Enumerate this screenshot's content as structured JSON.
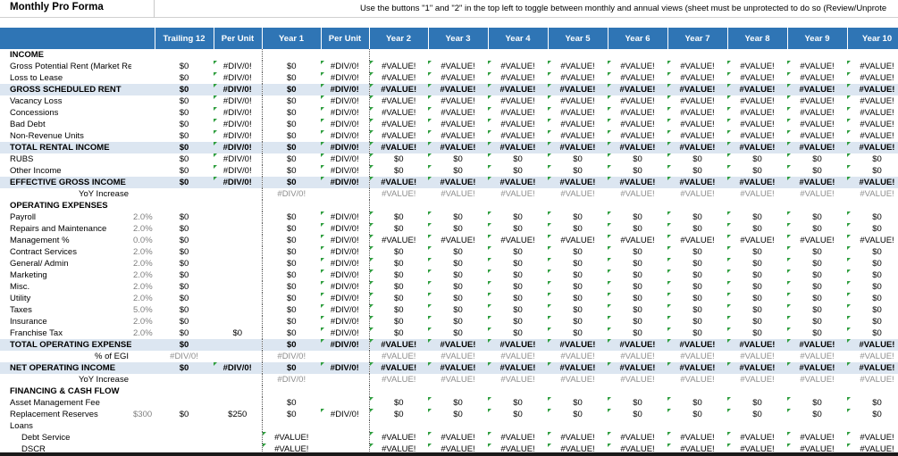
{
  "sheet": {
    "title": "Monthly Pro Forma",
    "note": "Use the buttons \"1\" and \"2\" in the top left to toggle between monthly and annual views (sheet must be unprotected to do so (Review/Unprote"
  },
  "columns": [
    "",
    "",
    "Trailing 12",
    "Per Unit",
    "Year 1",
    "Per Unit",
    "Year 2",
    "Year 3",
    "Year 4",
    "Year 5",
    "Year 6",
    "Year 7",
    "Year 8",
    "Year 9",
    "Year 10"
  ],
  "rows": [
    {
      "label": "INCOME",
      "style": "section",
      "pct": "",
      "t12": "",
      "pu1": "",
      "y1": "",
      "pu2": "",
      "years": [
        "",
        "",
        "",
        "",
        "",
        "",
        "",
        "",
        ""
      ]
    },
    {
      "label": "Gross Potential Rent (Market Rent)",
      "style": "normal",
      "pct": "",
      "t12": "$0",
      "pu1": "#DIV/0!",
      "y1": "$0",
      "pu2": "#DIV/0!",
      "years": [
        "#VALUE!",
        "#VALUE!",
        "#VALUE!",
        "#VALUE!",
        "#VALUE!",
        "#VALUE!",
        "#VALUE!",
        "#VALUE!",
        "#VALUE!"
      ]
    },
    {
      "label": "Loss to Lease",
      "style": "normal",
      "pct": "",
      "t12": "$0",
      "pu1": "#DIV/0!",
      "y1": "$0",
      "pu2": "#DIV/0!",
      "years": [
        "#VALUE!",
        "#VALUE!",
        "#VALUE!",
        "#VALUE!",
        "#VALUE!",
        "#VALUE!",
        "#VALUE!",
        "#VALUE!",
        "#VALUE!"
      ]
    },
    {
      "label": "GROSS SCHEDULED RENT",
      "style": "total",
      "pct": "",
      "t12": "$0",
      "pu1": "#DIV/0!",
      "y1": "$0",
      "pu2": "#DIV/0!",
      "years": [
        "#VALUE!",
        "#VALUE!",
        "#VALUE!",
        "#VALUE!",
        "#VALUE!",
        "#VALUE!",
        "#VALUE!",
        "#VALUE!",
        "#VALUE!"
      ]
    },
    {
      "label": "Vacancy Loss",
      "style": "normal",
      "pct": "",
      "t12": "$0",
      "pu1": "#DIV/0!",
      "y1": "$0",
      "pu2": "#DIV/0!",
      "years": [
        "#VALUE!",
        "#VALUE!",
        "#VALUE!",
        "#VALUE!",
        "#VALUE!",
        "#VALUE!",
        "#VALUE!",
        "#VALUE!",
        "#VALUE!"
      ]
    },
    {
      "label": "Concessions",
      "style": "normal",
      "pct": "",
      "t12": "$0",
      "pu1": "#DIV/0!",
      "y1": "$0",
      "pu2": "#DIV/0!",
      "years": [
        "#VALUE!",
        "#VALUE!",
        "#VALUE!",
        "#VALUE!",
        "#VALUE!",
        "#VALUE!",
        "#VALUE!",
        "#VALUE!",
        "#VALUE!"
      ]
    },
    {
      "label": "Bad Debt",
      "style": "normal",
      "pct": "",
      "t12": "$0",
      "pu1": "#DIV/0!",
      "y1": "$0",
      "pu2": "#DIV/0!",
      "years": [
        "#VALUE!",
        "#VALUE!",
        "#VALUE!",
        "#VALUE!",
        "#VALUE!",
        "#VALUE!",
        "#VALUE!",
        "#VALUE!",
        "#VALUE!"
      ]
    },
    {
      "label": "Non-Revenue Units",
      "style": "normal",
      "pct": "",
      "t12": "$0",
      "pu1": "#DIV/0!",
      "y1": "$0",
      "pu2": "#DIV/0!",
      "years": [
        "#VALUE!",
        "#VALUE!",
        "#VALUE!",
        "#VALUE!",
        "#VALUE!",
        "#VALUE!",
        "#VALUE!",
        "#VALUE!",
        "#VALUE!"
      ]
    },
    {
      "label": "TOTAL RENTAL INCOME",
      "style": "total",
      "pct": "",
      "t12": "$0",
      "pu1": "#DIV/0!",
      "y1": "$0",
      "pu2": "#DIV/0!",
      "years": [
        "#VALUE!",
        "#VALUE!",
        "#VALUE!",
        "#VALUE!",
        "#VALUE!",
        "#VALUE!",
        "#VALUE!",
        "#VALUE!",
        "#VALUE!"
      ]
    },
    {
      "label": "RUBS",
      "style": "normal",
      "pct": "",
      "t12": "$0",
      "pu1": "#DIV/0!",
      "y1": "$0",
      "pu2": "#DIV/0!",
      "years": [
        "$0",
        "$0",
        "$0",
        "$0",
        "$0",
        "$0",
        "$0",
        "$0",
        "$0"
      ]
    },
    {
      "label": "Other Income",
      "style": "normal",
      "pct": "",
      "t12": "$0",
      "pu1": "#DIV/0!",
      "y1": "$0",
      "pu2": "#DIV/0!",
      "years": [
        "$0",
        "$0",
        "$0",
        "$0",
        "$0",
        "$0",
        "$0",
        "$0",
        "$0"
      ]
    },
    {
      "label": "EFFECTIVE GROSS INCOME",
      "style": "total",
      "pct": "",
      "t12": "$0",
      "pu1": "#DIV/0!",
      "y1": "$0",
      "pu2": "#DIV/0!",
      "years": [
        "#VALUE!",
        "#VALUE!",
        "#VALUE!",
        "#VALUE!",
        "#VALUE!",
        "#VALUE!",
        "#VALUE!",
        "#VALUE!",
        "#VALUE!"
      ]
    },
    {
      "label": "YoY Increase",
      "style": "grey",
      "pct": "",
      "t12": "",
      "pu1": "",
      "y1": "#DIV/0!",
      "pu2": "",
      "years": [
        "#VALUE!",
        "#VALUE!",
        "#VALUE!",
        "#VALUE!",
        "#VALUE!",
        "#VALUE!",
        "#VALUE!",
        "#VALUE!",
        "#VALUE!"
      ]
    },
    {
      "label": "OPERATING EXPENSES",
      "style": "section",
      "pct": "",
      "t12": "",
      "pu1": "",
      "y1": "",
      "pu2": "",
      "years": [
        "",
        "",
        "",
        "",
        "",
        "",
        "",
        "",
        ""
      ]
    },
    {
      "label": "Payroll",
      "style": "normal",
      "pct": "2.0%",
      "t12": "$0",
      "pu1": "",
      "y1": "$0",
      "pu2": "#DIV/0!",
      "years": [
        "$0",
        "$0",
        "$0",
        "$0",
        "$0",
        "$0",
        "$0",
        "$0",
        "$0"
      ]
    },
    {
      "label": "Repairs and Maintenance",
      "style": "normal",
      "pct": "2.0%",
      "t12": "$0",
      "pu1": "",
      "y1": "$0",
      "pu2": "#DIV/0!",
      "years": [
        "$0",
        "$0",
        "$0",
        "$0",
        "$0",
        "$0",
        "$0",
        "$0",
        "$0"
      ]
    },
    {
      "label": "Management %",
      "style": "normal",
      "pct": "0.0%",
      "t12": "$0",
      "pu1": "",
      "y1": "$0",
      "pu2": "#DIV/0!",
      "years": [
        "#VALUE!",
        "#VALUE!",
        "#VALUE!",
        "#VALUE!",
        "#VALUE!",
        "#VALUE!",
        "#VALUE!",
        "#VALUE!",
        "#VALUE!"
      ]
    },
    {
      "label": "Contract Services",
      "style": "normal",
      "pct": "2.0%",
      "t12": "$0",
      "pu1": "",
      "y1": "$0",
      "pu2": "#DIV/0!",
      "years": [
        "$0",
        "$0",
        "$0",
        "$0",
        "$0",
        "$0",
        "$0",
        "$0",
        "$0"
      ]
    },
    {
      "label": "General/ Admin",
      "style": "normal",
      "pct": "2.0%",
      "t12": "$0",
      "pu1": "",
      "y1": "$0",
      "pu2": "#DIV/0!",
      "years": [
        "$0",
        "$0",
        "$0",
        "$0",
        "$0",
        "$0",
        "$0",
        "$0",
        "$0"
      ]
    },
    {
      "label": "Marketing",
      "style": "normal",
      "pct": "2.0%",
      "t12": "$0",
      "pu1": "",
      "y1": "$0",
      "pu2": "#DIV/0!",
      "years": [
        "$0",
        "$0",
        "$0",
        "$0",
        "$0",
        "$0",
        "$0",
        "$0",
        "$0"
      ]
    },
    {
      "label": "Misc.",
      "style": "normal",
      "pct": "2.0%",
      "t12": "$0",
      "pu1": "",
      "y1": "$0",
      "pu2": "#DIV/0!",
      "years": [
        "$0",
        "$0",
        "$0",
        "$0",
        "$0",
        "$0",
        "$0",
        "$0",
        "$0"
      ]
    },
    {
      "label": "Utility",
      "style": "normal",
      "pct": "2.0%",
      "t12": "$0",
      "pu1": "",
      "y1": "$0",
      "pu2": "#DIV/0!",
      "years": [
        "$0",
        "$0",
        "$0",
        "$0",
        "$0",
        "$0",
        "$0",
        "$0",
        "$0"
      ]
    },
    {
      "label": "Taxes",
      "style": "normal",
      "pct": "5.0%",
      "t12": "$0",
      "pu1": "",
      "y1": "$0",
      "pu2": "#DIV/0!",
      "years": [
        "$0",
        "$0",
        "$0",
        "$0",
        "$0",
        "$0",
        "$0",
        "$0",
        "$0"
      ]
    },
    {
      "label": "Insurance",
      "style": "normal",
      "pct": "2.0%",
      "t12": "$0",
      "pu1": "",
      "y1": "$0",
      "pu2": "#DIV/0!",
      "years": [
        "$0",
        "$0",
        "$0",
        "$0",
        "$0",
        "$0",
        "$0",
        "$0",
        "$0"
      ]
    },
    {
      "label": "Franchise Tax",
      "style": "normal",
      "pct": "2.0%",
      "t12": "$0",
      "pu1": "$0",
      "y1": "$0",
      "pu2": "#DIV/0!",
      "years": [
        "$0",
        "$0",
        "$0",
        "$0",
        "$0",
        "$0",
        "$0",
        "$0",
        "$0"
      ]
    },
    {
      "label": "TOTAL OPERATING EXPENSES",
      "style": "total",
      "pct": "",
      "t12": "$0",
      "pu1": "",
      "y1": "$0",
      "pu2": "#DIV/0!",
      "years": [
        "#VALUE!",
        "#VALUE!",
        "#VALUE!",
        "#VALUE!",
        "#VALUE!",
        "#VALUE!",
        "#VALUE!",
        "#VALUE!",
        "#VALUE!"
      ]
    },
    {
      "label": "% of EGI",
      "style": "grey",
      "pct": "",
      "t12": "#DIV/0!",
      "pu1": "",
      "y1": "#DIV/0!",
      "pu2": "",
      "years": [
        "#VALUE!",
        "#VALUE!",
        "#VALUE!",
        "#VALUE!",
        "#VALUE!",
        "#VALUE!",
        "#VALUE!",
        "#VALUE!",
        "#VALUE!"
      ]
    },
    {
      "label": "NET OPERATING INCOME",
      "style": "total",
      "pct": "",
      "t12": "$0",
      "pu1": "#DIV/0!",
      "y1": "$0",
      "pu2": "#DIV/0!",
      "years": [
        "#VALUE!",
        "#VALUE!",
        "#VALUE!",
        "#VALUE!",
        "#VALUE!",
        "#VALUE!",
        "#VALUE!",
        "#VALUE!",
        "#VALUE!"
      ]
    },
    {
      "label": "YoY Increase",
      "style": "grey",
      "pct": "",
      "t12": "",
      "pu1": "",
      "y1": "#DIV/0!",
      "pu2": "",
      "years": [
        "#VALUE!",
        "#VALUE!",
        "#VALUE!",
        "#VALUE!",
        "#VALUE!",
        "#VALUE!",
        "#VALUE!",
        "#VALUE!",
        "#VALUE!"
      ]
    },
    {
      "label": "FINANCING & CASH FLOW",
      "style": "section",
      "pct": "",
      "t12": "",
      "pu1": "",
      "y1": "",
      "pu2": "",
      "years": [
        "",
        "",
        "",
        "",
        "",
        "",
        "",
        "",
        ""
      ]
    },
    {
      "label": "Asset Management Fee",
      "style": "normal",
      "pct": "",
      "t12": "",
      "pu1": "",
      "y1": "$0",
      "pu2": "",
      "years": [
        "$0",
        "$0",
        "$0",
        "$0",
        "$0",
        "$0",
        "$0",
        "$0",
        "$0"
      ]
    },
    {
      "label": "Replacement Reserves",
      "style": "normal",
      "pct": "$300",
      "t12": "$0",
      "pu1": "$250",
      "y1": "$0",
      "pu2": "#DIV/0!",
      "years": [
        "$0",
        "$0",
        "$0",
        "$0",
        "$0",
        "$0",
        "$0",
        "$0",
        "$0"
      ]
    },
    {
      "label": "Loans",
      "style": "normal",
      "pct": "",
      "t12": "",
      "pu1": "",
      "y1": "",
      "pu2": "",
      "years": [
        "",
        "",
        "",
        "",
        "",
        "",
        "",
        "",
        ""
      ]
    },
    {
      "label": "Debt Service",
      "style": "indent",
      "pct": "",
      "t12": "",
      "pu1": "",
      "y1": "#VALUE!",
      "pu2": "",
      "years": [
        "#VALUE!",
        "#VALUE!",
        "#VALUE!",
        "#VALUE!",
        "#VALUE!",
        "#VALUE!",
        "#VALUE!",
        "#VALUE!",
        "#VALUE!"
      ]
    },
    {
      "label": "DSCR",
      "style": "indent",
      "pct": "",
      "t12": "",
      "pu1": "",
      "y1": "#VALUE!",
      "pu2": "",
      "years": [
        "#VALUE!",
        "#VALUE!",
        "#VALUE!",
        "#VALUE!",
        "#VALUE!",
        "#VALUE!",
        "#VALUE!",
        "#VALUE!",
        "#VALUE!"
      ]
    }
  ]
}
